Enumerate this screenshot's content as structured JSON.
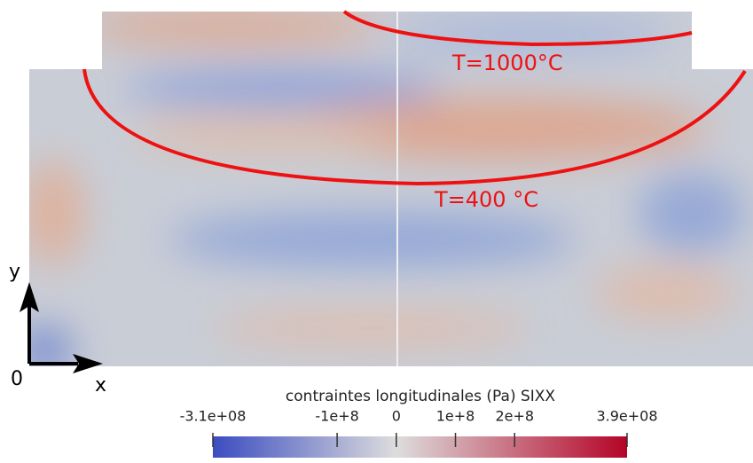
{
  "annotations": {
    "isotherm_high": "T=1000°C",
    "isotherm_low": "T=400 °C"
  },
  "axes": {
    "y": "y",
    "origin": "0",
    "x": "x"
  },
  "colorbar": {
    "title": "contraintes longitudinales (Pa) SIXX",
    "range": [
      -310000000,
      390000000
    ],
    "ticks": [
      {
        "value": -310000000,
        "label": "-3.1e+08"
      },
      {
        "value": -100000000,
        "label": "-1e+8"
      },
      0,
      {
        "value": 100000000,
        "label": "1e+8"
      },
      {
        "value": 200000000,
        "label": "2e+8"
      },
      {
        "value": 390000000,
        "label": "3.9e+08"
      }
    ]
  }
}
